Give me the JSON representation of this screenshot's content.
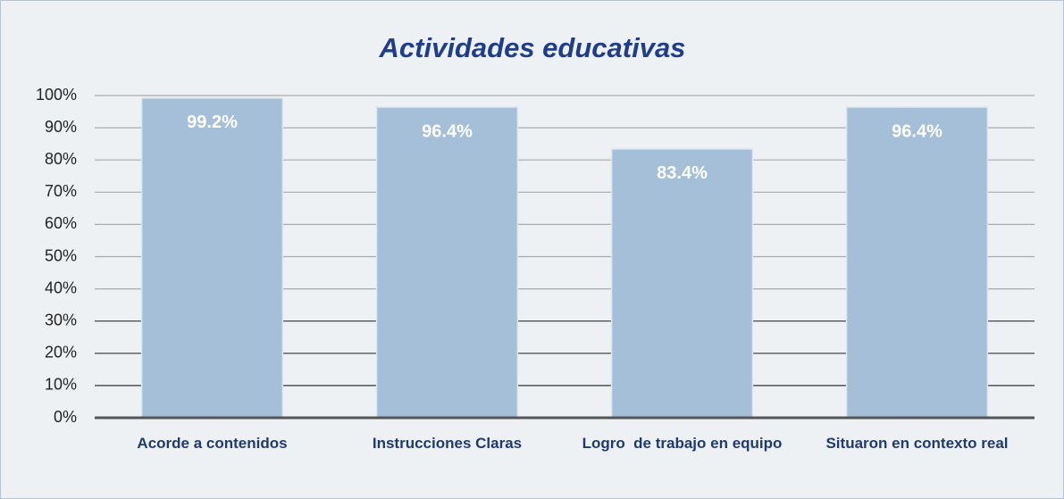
{
  "chart_data": {
    "type": "bar",
    "title": "Actividades educativas",
    "categories": [
      "Acorde a contenidos",
      "Instrucciones Claras",
      "Logro  de trabajo en equipo",
      "Situaron en contexto real"
    ],
    "values": [
      99.2,
      96.4,
      83.4,
      96.4
    ],
    "value_labels": [
      "99.2%",
      "96.4%",
      "83.4%",
      "96.4%"
    ],
    "color": "#a5bfd8",
    "ylim": [
      0,
      100
    ],
    "yticks": [
      {
        "value": 0,
        "label": "0%"
      },
      {
        "value": 10,
        "label": "10%"
      },
      {
        "value": 20,
        "label": "20%"
      },
      {
        "value": 30,
        "label": "30%"
      },
      {
        "value": 40,
        "label": "40%"
      },
      {
        "value": 50,
        "label": "50%"
      },
      {
        "value": 60,
        "label": "60%"
      },
      {
        "value": 70,
        "label": "70%"
      },
      {
        "value": 80,
        "label": "80%"
      },
      {
        "value": 90,
        "label": "90%"
      },
      {
        "value": 100,
        "label": "100%"
      }
    ],
    "grid": true
  }
}
